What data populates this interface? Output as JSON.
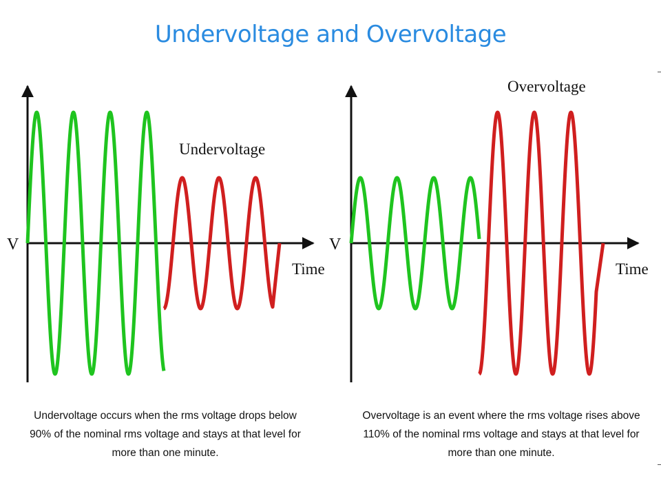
{
  "title": "Undervoltage and Overvoltage",
  "colors": {
    "title": "#2a8be0",
    "normal_wave": "#1fc41f",
    "event_wave": "#d01f1f",
    "axis": "#111111"
  },
  "left_panel": {
    "event_label": "Undervoltage",
    "y_axis_label": "V",
    "x_axis_label": "Time",
    "caption_lines": [
      "Undervoltage occurs when the rms voltage drops below",
      "90% of the nominal rms voltage and stays at that level for",
      "more than one minute."
    ]
  },
  "right_panel": {
    "event_label": "Overvoltage",
    "y_axis_label": "V",
    "x_axis_label": "Time",
    "caption_lines": [
      "Overvoltage is an event where the rms voltage rises above",
      "110% of the nominal rms voltage and stays at that level for",
      "more than one minute."
    ]
  }
}
